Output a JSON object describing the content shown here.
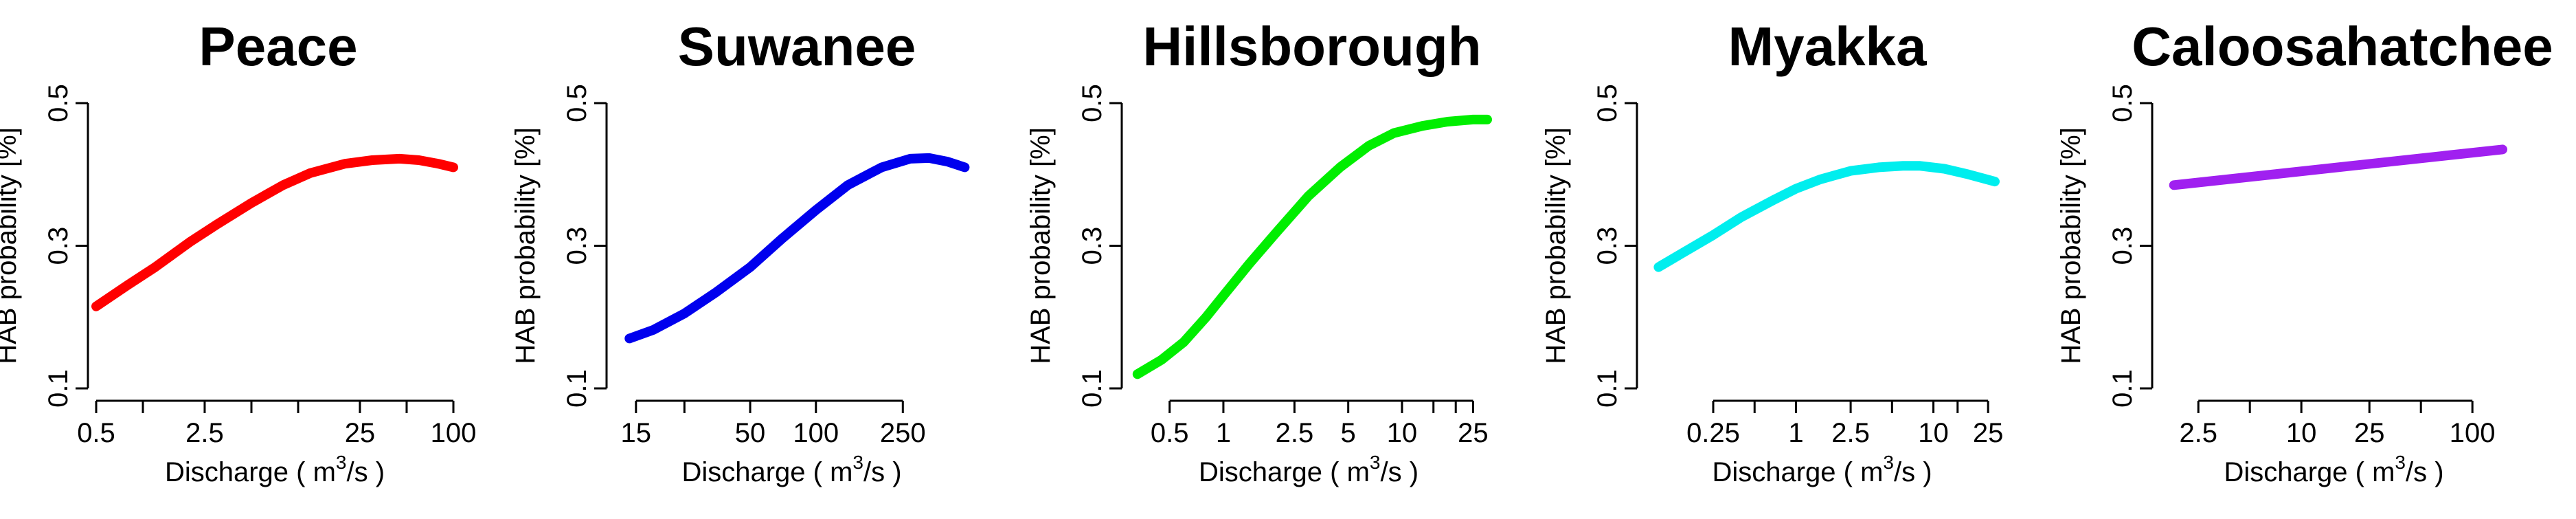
{
  "chart_data": [
    {
      "type": "line",
      "title": "Peace",
      "xlabel_text": "Discharge ( m",
      "xlabel_sup": "3",
      "xlabel_tail": "/s )",
      "ylabel": "HAB probability [%]",
      "x_scale": "log",
      "xlim": [
        0.5,
        100
      ],
      "ylim": [
        0.1,
        0.5
      ],
      "x_ticks": [
        0.5,
        1,
        2.5,
        5,
        10,
        25,
        50,
        100
      ],
      "x_tick_labels": [
        "0.5",
        "",
        "2.5",
        "",
        "",
        "25",
        "",
        "100"
      ],
      "y_ticks": [
        0.1,
        0.3,
        0.5
      ],
      "y_tick_labels": [
        "0.1",
        "0.3",
        "0.5"
      ],
      "series": [
        {
          "color": "#ff0000",
          "x": [
            0.5,
            0.8,
            1.2,
            2,
            3,
            5,
            8,
            12,
            20,
            30,
            45,
            60,
            80,
            100
          ],
          "y": [
            0.215,
            0.245,
            0.27,
            0.305,
            0.33,
            0.36,
            0.385,
            0.402,
            0.415,
            0.42,
            0.422,
            0.42,
            0.415,
            0.41
          ]
        }
      ]
    },
    {
      "type": "line",
      "title": "Suwanee",
      "xlabel_text": "Discharge ( m",
      "xlabel_sup": "3",
      "xlabel_tail": "/s )",
      "ylabel": "HAB probability [%]",
      "x_scale": "log",
      "xlim": [
        12,
        500
      ],
      "ylim": [
        0.1,
        0.5
      ],
      "x_ticks": [
        15,
        25,
        50,
        100,
        250
      ],
      "x_tick_labels": [
        "15",
        "",
        "50",
        "100",
        "250"
      ],
      "y_ticks": [
        0.1,
        0.3,
        0.5
      ],
      "y_tick_labels": [
        "0.1",
        "0.3",
        "0.5"
      ],
      "series": [
        {
          "color": "#0000ee",
          "x": [
            14,
            18,
            25,
            35,
            50,
            70,
            100,
            140,
            200,
            270,
            330,
            400,
            480
          ],
          "y": [
            0.17,
            0.182,
            0.205,
            0.235,
            0.27,
            0.31,
            0.35,
            0.385,
            0.41,
            0.422,
            0.423,
            0.418,
            0.41
          ]
        }
      ]
    },
    {
      "type": "line",
      "title": "Hillsborough",
      "xlabel_text": "Discharge ( m",
      "xlabel_sup": "3",
      "xlabel_tail": "/s )",
      "ylabel": "HAB probability [%]",
      "x_scale": "log",
      "xlim": [
        0.3,
        30
      ],
      "ylim": [
        0.1,
        0.5
      ],
      "x_ticks": [
        0.5,
        1,
        2.5,
        5,
        10,
        15,
        20,
        25
      ],
      "x_tick_labels": [
        "0.5",
        "1",
        "2.5",
        "5",
        "10",
        "",
        "",
        "25"
      ],
      "y_ticks": [
        0.1,
        0.3,
        0.5
      ],
      "y_tick_labels": [
        "0.1",
        "0.3",
        "0.5"
      ],
      "series": [
        {
          "color": "#00ee00",
          "x": [
            0.33,
            0.45,
            0.6,
            0.8,
            1,
            1.4,
            2,
            3,
            4.5,
            6.5,
            9,
            13,
            18,
            25,
            30
          ],
          "y": [
            0.12,
            0.14,
            0.165,
            0.2,
            0.23,
            0.275,
            0.32,
            0.37,
            0.41,
            0.44,
            0.458,
            0.468,
            0.474,
            0.477,
            0.477
          ]
        }
      ]
    },
    {
      "type": "line",
      "title": "Myakka",
      "xlabel_text": "Discharge ( m",
      "xlabel_sup": "3",
      "xlabel_tail": "/s )",
      "ylabel": "HAB probability [%]",
      "x_scale": "log",
      "xlim": [
        0.08,
        30
      ],
      "ylim": [
        0.1,
        0.5
      ],
      "x_ticks": [
        0.25,
        0.5,
        1,
        2.5,
        5,
        10,
        15,
        25
      ],
      "x_tick_labels": [
        "0.25",
        "",
        "1",
        "2.5",
        "",
        "10",
        "",
        "25"
      ],
      "y_ticks": [
        0.1,
        0.3,
        0.5
      ],
      "y_tick_labels": [
        "0.1",
        "0.3",
        "0.5"
      ],
      "series": [
        {
          "color": "#00eeee",
          "x": [
            0.1,
            0.15,
            0.25,
            0.4,
            0.7,
            1,
            1.5,
            2.5,
            4,
            6,
            8,
            12,
            18,
            28
          ],
          "y": [
            0.27,
            0.29,
            0.315,
            0.34,
            0.365,
            0.38,
            0.393,
            0.405,
            0.41,
            0.412,
            0.412,
            0.408,
            0.4,
            0.39
          ]
        }
      ]
    },
    {
      "type": "line",
      "title": "Caloosahatchee",
      "xlabel_text": "Discharge ( m",
      "xlabel_sup": "3",
      "xlabel_tail": "/s )",
      "ylabel": "HAB probability [%]",
      "x_scale": "log",
      "xlim": [
        1.5,
        160
      ],
      "ylim": [
        0.1,
        0.5
      ],
      "x_ticks": [
        2.5,
        5,
        10,
        25,
        50,
        100
      ],
      "x_tick_labels": [
        "2.5",
        "",
        "10",
        "25",
        "",
        "100"
      ],
      "y_ticks": [
        0.1,
        0.3,
        0.5
      ],
      "y_tick_labels": [
        "0.1",
        "0.3",
        "0.5"
      ],
      "series": [
        {
          "color": "#a020f0",
          "x": [
            1.8,
            150
          ],
          "y": [
            0.385,
            0.435
          ]
        }
      ]
    }
  ]
}
